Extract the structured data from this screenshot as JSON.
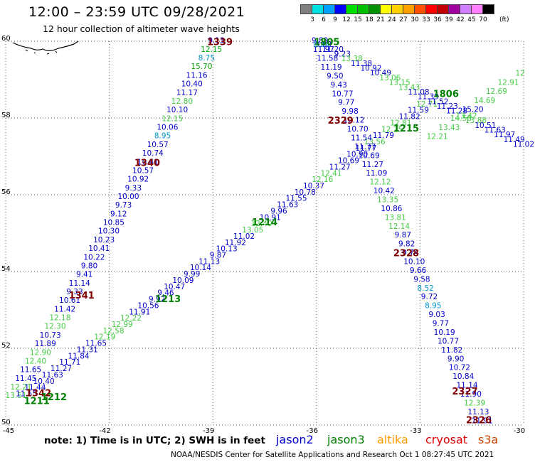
{
  "title": "12:00 – 23:59 UTC 09/28/2021",
  "subtitle": "12 hour collection of altimeter wave heights",
  "colorbar": {
    "colors": [
      "#808080",
      "#00e0e0",
      "#00a0ff",
      "#0000ff",
      "#00e000",
      "#00c000",
      "#009000",
      "#ffff00",
      "#ffd000",
      "#ffa000",
      "#ff5000",
      "#ff0000",
      "#c00000",
      "#a000a0",
      "#d080ff",
      "#ff80ff",
      "#000000"
    ],
    "labels": [
      "3",
      "6",
      "9",
      "12",
      "15",
      "18",
      "21",
      "24",
      "27",
      "30",
      "33",
      "36",
      "39",
      "42",
      "45",
      "70"
    ],
    "unit": "(ft)"
  },
  "axes": {
    "lon_range": [
      -45,
      -30
    ],
    "lat_range": [
      50,
      60
    ],
    "x_ticks": [
      "-45",
      "-42",
      "-39",
      "-36",
      "-33",
      "-30"
    ],
    "y_ticks": [
      "60",
      "58",
      "56",
      "54",
      "52",
      "50"
    ]
  },
  "pass_labels": [
    {
      "text": "1339",
      "color": "#800000",
      "lon": -38.8,
      "lat": 59.9
    },
    {
      "text": "1805",
      "color": "#008000",
      "lon": -35.7,
      "lat": 59.9
    },
    {
      "text": "1806",
      "color": "#008000",
      "lon": -32.25,
      "lat": 58.55
    },
    {
      "text": "2329",
      "color": "#800000",
      "lon": -35.3,
      "lat": 57.85
    },
    {
      "text": "1215",
      "color": "#008000",
      "lon": -33.4,
      "lat": 57.65
    },
    {
      "text": "1340",
      "color": "#800000",
      "lon": -40.9,
      "lat": 56.75
    },
    {
      "text": "1214",
      "color": "#008000",
      "lon": -37.5,
      "lat": 55.2
    },
    {
      "text": "2328",
      "color": "#800000",
      "lon": -33.4,
      "lat": 54.4
    },
    {
      "text": "1341",
      "color": "#800000",
      "lon": -42.8,
      "lat": 53.3
    },
    {
      "text": "1213",
      "color": "#008000",
      "lon": -40.3,
      "lat": 53.2
    },
    {
      "text": "1342",
      "color": "#800000",
      "lon": -44.05,
      "lat": 50.75
    },
    {
      "text": "1212",
      "color": "#008000",
      "lon": -43.6,
      "lat": 50.65
    },
    {
      "text": "1211",
      "color": "#008000",
      "lon": -44.1,
      "lat": 50.55
    },
    {
      "text": "2327",
      "color": "#800000",
      "lon": -31.7,
      "lat": 50.8
    },
    {
      "text": "2326",
      "color": "#800000",
      "lon": -31.3,
      "lat": 50.05
    }
  ],
  "tracks": [
    {
      "name": "track-1339-1342",
      "start": {
        "lon": -38.9,
        "lat": 59.95
      },
      "end": {
        "lon": -44.7,
        "lat": 50.7
      },
      "color": "#0000cc",
      "values": [
        "9.13",
        "12.15",
        "8.75",
        "15.70",
        "11.16",
        "10.40",
        "11.17",
        "12.80",
        "10.10",
        "12.15",
        "10.06",
        "8.95",
        "10.57",
        "10.74",
        "10.41",
        "10.57",
        "10.92",
        "9.33",
        "10.00",
        "9.73",
        "9.12",
        "10.85",
        "10.30",
        "10.23",
        "10.41",
        "10.22",
        "9.80",
        "9.41",
        "11.14",
        "9.33",
        "10.61",
        "11.42",
        "12.18",
        "12.30",
        "10.73",
        "11.89",
        "12.90",
        "12.40",
        "11.65",
        "11.45",
        "12.21",
        "13.51"
      ],
      "colors": [
        "#0000cc",
        "#00aa00",
        "#0099cc",
        "#00aa00",
        "#0000cc",
        "#0000cc",
        "#0000cc",
        "#44cc44",
        "#0000cc",
        "#44cc44",
        "#0000cc",
        "#0099cc",
        "#0000cc",
        "#0000cc",
        "#0000cc",
        "#0000cc",
        "#0000cc",
        "#0000cc",
        "#0000cc",
        "#0000cc",
        "#0000cc",
        "#0000cc",
        "#0000cc",
        "#0000cc",
        "#0000cc",
        "#0000cc",
        "#0000cc",
        "#0000cc",
        "#0000cc",
        "#0000cc",
        "#0000cc",
        "#0000cc",
        "#44cc44",
        "#44cc44",
        "#0000cc",
        "#0000cc",
        "#44cc44",
        "#44cc44",
        "#0000cc",
        "#0000cc",
        "#44cc44",
        "#44cc44"
      ]
    },
    {
      "name": "track-1211-1215",
      "start": {
        "lon": -44.4,
        "lat": 50.75
      },
      "end": {
        "lon": -32.8,
        "lat": 58.3
      },
      "color": "#0000cc",
      "values": [
        "11.55",
        "11.44",
        "10.40",
        "11.63",
        "11.27",
        "11.71",
        "11.84",
        "11.31",
        "11.65",
        "12.19",
        "12.58",
        "12.99",
        "12.22",
        "11.91",
        "10.56",
        "9.92",
        "9.46",
        "10.47",
        "10.09",
        "9.99",
        "10.14",
        "11.13",
        "9.87",
        "10.13",
        "11.92",
        "11.02",
        "13.05",
        "12.40",
        "10.91",
        "9.96",
        "11.63",
        "11.55",
        "10.78",
        "10.37",
        "12.16",
        "12.41",
        "11.27",
        "10.69",
        "10.90",
        "11.77",
        "13.56",
        "11.79",
        "12.25",
        "12.81",
        "11.82",
        "11.59",
        "12.71"
      ],
      "colors": [
        "#0000cc",
        "#0000cc",
        "#0000cc",
        "#0000cc",
        "#0000cc",
        "#0000cc",
        "#0000cc",
        "#0000cc",
        "#0000cc",
        "#44cc44",
        "#44cc44",
        "#44cc44",
        "#44cc44",
        "#0000cc",
        "#0000cc",
        "#0000cc",
        "#0000cc",
        "#0000cc",
        "#0000cc",
        "#0000cc",
        "#0000cc",
        "#0000cc",
        "#0000cc",
        "#0000cc",
        "#0000cc",
        "#0000cc",
        "#44cc44",
        "#44cc44",
        "#0000cc",
        "#0000cc",
        "#0000cc",
        "#0000cc",
        "#0000cc",
        "#0000cc",
        "#44cc44",
        "#44cc44",
        "#0000cc",
        "#0000cc",
        "#0000cc",
        "#0000cc",
        "#44cc44",
        "#0000cc",
        "#44cc44",
        "#44cc44",
        "#0000cc",
        "#0000cc",
        "#44cc44"
      ]
    },
    {
      "name": "track-2329-2326",
      "start": {
        "lon": -35.9,
        "lat": 59.95
      },
      "end": {
        "lon": -31.2,
        "lat": 50.05
      },
      "color": "#0000cc",
      "values": [
        "9.89",
        "11.97",
        "11.58",
        "11.19",
        "9.50",
        "9.43",
        "10.77",
        "9.77",
        "9.98",
        "10.12",
        "10.70",
        "11.54",
        "11.77",
        "10.69",
        "11.27",
        "11.09",
        "12.12",
        "10.42",
        "13.35",
        "10.86",
        "13.81",
        "12.14",
        "9.87",
        "9.82",
        "9.74",
        "10.10",
        "9.66",
        "9.58",
        "8.52",
        "9.72",
        "8.95",
        "9.03",
        "9.77",
        "10.19",
        "10.77",
        "11.82",
        "9.90",
        "10.72",
        "10.84",
        "11.14",
        "11.90",
        "12.39",
        "11.13",
        "11.91"
      ],
      "colors": [
        "#0000cc",
        "#0000cc",
        "#0000cc",
        "#0000cc",
        "#0000cc",
        "#0000cc",
        "#0000cc",
        "#0000cc",
        "#0000cc",
        "#0000cc",
        "#0000cc",
        "#0000cc",
        "#0000cc",
        "#0000cc",
        "#0000cc",
        "#0000cc",
        "#44cc44",
        "#0000cc",
        "#44cc44",
        "#0000cc",
        "#44cc44",
        "#44cc44",
        "#0000cc",
        "#0000cc",
        "#0000cc",
        "#0000cc",
        "#0000cc",
        "#0000cc",
        "#0099cc",
        "#0000cc",
        "#0099cc",
        "#0000cc",
        "#0000cc",
        "#0000cc",
        "#0000cc",
        "#0000cc",
        "#0000cc",
        "#0000cc",
        "#0000cc",
        "#0000cc",
        "#0000cc",
        "#44cc44",
        "#0000cc",
        "#0000cc"
      ]
    },
    {
      "name": "track-1805-1806",
      "start": {
        "lon": -35.8,
        "lat": 59.85
      },
      "end": {
        "lon": -30.0,
        "lat": 57.25
      },
      "color": "#0000cc",
      "values": [
        "9.89",
        "11.20",
        "9.23",
        "13.38",
        "11.38",
        "10.92",
        "10.49",
        "13.06",
        "13.15",
        "13.43",
        "11.08",
        "11.39",
        "11.52",
        "11.23",
        "11.28",
        "13.42",
        "13.88",
        "10.51",
        "11.63",
        "11.97",
        "11.49",
        "11.02"
      ],
      "colors": [
        "#0000cc",
        "#0000cc",
        "#0000cc",
        "#44cc44",
        "#0000cc",
        "#0000cc",
        "#0000cc",
        "#44cc44",
        "#44cc44",
        "#44cc44",
        "#0000cc",
        "#0000cc",
        "#0000cc",
        "#0000cc",
        "#0000cc",
        "#44cc44",
        "#44cc44",
        "#0000cc",
        "#0000cc",
        "#0000cc",
        "#0000cc",
        "#0000cc"
      ]
    },
    {
      "name": "track-2329-north",
      "start": {
        "lon": -35.85,
        "lat": 59.85
      },
      "end": {
        "lon": -35.7,
        "lat": 59.95
      },
      "color": "#0099cc",
      "values": [
        "8.84"
      ],
      "colors": [
        "#0099cc"
      ]
    },
    {
      "name": "track-ne-green",
      "start": {
        "lon": -32.5,
        "lat": 57.45
      },
      "end": {
        "lon": -30.1,
        "lat": 59.1
      },
      "color": "#44cc44",
      "values": [
        "12.21",
        "13.43",
        "14.56",
        "15.20",
        "14.69",
        "12.69",
        "12.91",
        "12"
      ],
      "colors": [
        "#44cc44",
        "#44cc44",
        "#44cc44",
        "#0000cc",
        "#44cc44",
        "#44cc44",
        "#44cc44",
        "#44cc44"
      ]
    }
  ],
  "note": "note:  1) Time is in UTC;  2) SWH is in feet",
  "legend": [
    {
      "text": "jason2",
      "color": "#0000cc"
    },
    {
      "text": "jason3",
      "color": "#008000"
    },
    {
      "text": "altika",
      "color": "#ff9900"
    },
    {
      "text": "cryosat",
      "color": "#dd0000"
    },
    {
      "text": "s3a",
      "color": "#cc4400"
    }
  ],
  "credit": "NOAA/NESDIS Center for Satellite Applications and Research    Oct  1 08:27:45 UTC 2021"
}
